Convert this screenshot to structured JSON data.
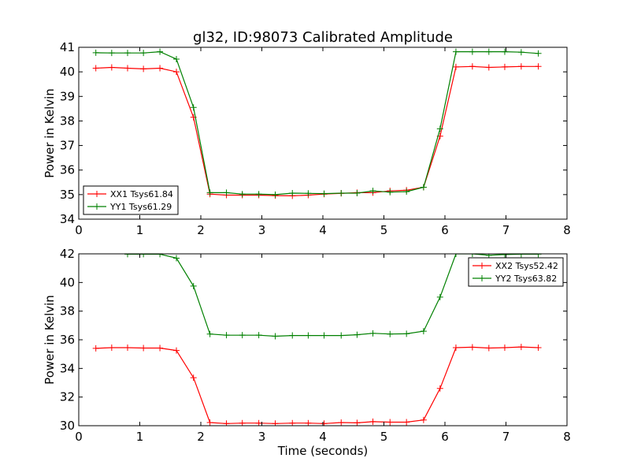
{
  "figure": {
    "title": "gl32, ID:98073 Calibrated Amplitude"
  },
  "chart_data": [
    {
      "type": "line",
      "title": "gl32, ID:98073 Calibrated Amplitude",
      "xlabel": "",
      "ylabel": "Power in Kelvin",
      "xlim": [
        0,
        8
      ],
      "ylim": [
        34,
        41
      ],
      "xticks": [
        0,
        1,
        2,
        3,
        4,
        5,
        6,
        7,
        8
      ],
      "yticks": [
        34,
        35,
        36,
        37,
        38,
        39,
        40,
        41
      ],
      "legend_position": "lower-left",
      "grid": false,
      "x": [
        0.28,
        0.54,
        0.8,
        1.06,
        1.33,
        1.6,
        1.88,
        2.15,
        2.42,
        2.68,
        2.95,
        3.22,
        3.5,
        3.76,
        4.02,
        4.3,
        4.56,
        4.82,
        5.1,
        5.37,
        5.65,
        5.92,
        6.18,
        6.45,
        6.72,
        6.98,
        7.25,
        7.53
      ],
      "series": [
        {
          "name": "XX1 Tsys61.84",
          "color": "#ff0000",
          "values": [
            40.15,
            40.18,
            40.15,
            40.12,
            40.15,
            40.0,
            38.15,
            35.02,
            34.98,
            34.98,
            34.98,
            34.96,
            34.95,
            34.98,
            35.02,
            35.05,
            35.08,
            35.08,
            35.15,
            35.18,
            35.3,
            37.38,
            40.2,
            40.22,
            40.18,
            40.2,
            40.22,
            40.22
          ]
        },
        {
          "name": "YY1 Tsys61.29",
          "color": "#008000",
          "values": [
            40.78,
            40.77,
            40.77,
            40.77,
            40.82,
            40.52,
            38.55,
            35.08,
            35.08,
            35.02,
            35.02,
            35.0,
            35.06,
            35.05,
            35.04,
            35.06,
            35.06,
            35.15,
            35.1,
            35.12,
            35.3,
            37.68,
            40.82,
            40.82,
            40.82,
            40.82,
            40.8,
            40.75
          ]
        }
      ]
    },
    {
      "type": "line",
      "title": "",
      "xlabel": "Time (seconds)",
      "ylabel": "Power in Kelvin",
      "xlim": [
        0,
        8
      ],
      "ylim": [
        30,
        42
      ],
      "xticks": [
        0,
        1,
        2,
        3,
        4,
        5,
        6,
        7,
        8
      ],
      "yticks": [
        30,
        32,
        34,
        36,
        38,
        40,
        42
      ],
      "legend_position": "upper-right",
      "grid": false,
      "x": [
        0.28,
        0.54,
        0.8,
        1.06,
        1.33,
        1.6,
        1.88,
        2.15,
        2.42,
        2.68,
        2.95,
        3.22,
        3.5,
        3.76,
        4.02,
        4.3,
        4.56,
        4.82,
        5.1,
        5.37,
        5.65,
        5.92,
        6.18,
        6.45,
        6.72,
        6.98,
        7.25,
        7.53
      ],
      "series": [
        {
          "name": "XX2 Tsys52.42",
          "color": "#ff0000",
          "values": [
            35.4,
            35.45,
            35.45,
            35.42,
            35.42,
            35.25,
            33.35,
            30.22,
            30.15,
            30.18,
            30.18,
            30.15,
            30.18,
            30.18,
            30.15,
            30.22,
            30.2,
            30.28,
            30.25,
            30.25,
            30.4,
            32.6,
            35.45,
            35.48,
            35.42,
            35.45,
            35.5,
            35.45
          ]
        },
        {
          "name": "YY2 Tsys63.82",
          "color": "#008000",
          "values": [
            42.2,
            42.2,
            41.98,
            41.98,
            41.98,
            41.7,
            39.75,
            36.4,
            36.32,
            36.32,
            36.32,
            36.25,
            36.3,
            36.3,
            36.3,
            36.3,
            36.35,
            36.45,
            36.4,
            36.42,
            36.6,
            38.98,
            42.0,
            42.0,
            41.9,
            41.95,
            41.98,
            41.98
          ]
        }
      ]
    }
  ]
}
